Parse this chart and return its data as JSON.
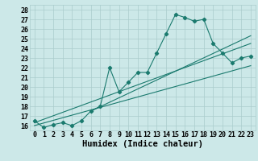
{
  "xlabel": "Humidex (Indice chaleur)",
  "x_ticks": [
    0,
    1,
    2,
    3,
    4,
    5,
    6,
    7,
    8,
    9,
    10,
    11,
    12,
    13,
    14,
    15,
    16,
    17,
    18,
    19,
    20,
    21,
    22,
    23
  ],
  "ylim": [
    15.5,
    28.5
  ],
  "xlim": [
    -0.5,
    23.5
  ],
  "yticks": [
    16,
    17,
    18,
    19,
    20,
    21,
    22,
    23,
    24,
    25,
    26,
    27,
    28
  ],
  "main_line_x": [
    0,
    1,
    2,
    3,
    4,
    5,
    6,
    7,
    8,
    9,
    10,
    11,
    12,
    13,
    14,
    15,
    16,
    17,
    18,
    19,
    20,
    21,
    22,
    23
  ],
  "main_line_y": [
    16.5,
    15.8,
    16.1,
    16.3,
    16.0,
    16.5,
    17.5,
    18.0,
    22.0,
    19.5,
    20.5,
    21.5,
    21.5,
    23.5,
    25.5,
    27.5,
    27.2,
    26.8,
    27.0,
    24.5,
    23.5,
    22.5,
    23.0,
    23.2
  ],
  "trend1_x": [
    0,
    23
  ],
  "trend1_y": [
    16.3,
    24.5
  ],
  "trend2_x": [
    0,
    23
  ],
  "trend2_y": [
    16.0,
    22.2
  ],
  "trend3_x": [
    6,
    23
  ],
  "trend3_y": [
    17.5,
    25.3
  ],
  "line_color": "#1a7a6e",
  "bg_color": "#cce8e8",
  "grid_color": "#aacccc",
  "tick_label_fontsize": 6.0,
  "xlabel_fontsize": 7.5
}
